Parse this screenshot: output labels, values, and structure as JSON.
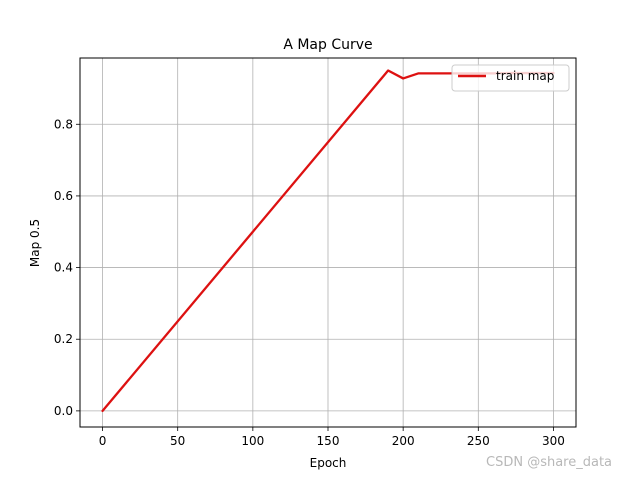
{
  "chart_data": {
    "type": "line",
    "title": "A Map Curve",
    "xlabel": "Epoch",
    "ylabel": "Map 0.5",
    "xlim": [
      -15,
      315
    ],
    "ylim": [
      -0.045,
      0.985
    ],
    "xticks": [
      0,
      50,
      100,
      150,
      200,
      250,
      300
    ],
    "yticks": [
      0.0,
      0.2,
      0.4,
      0.6,
      0.8
    ],
    "ytick_labels": [
      "0.0",
      "0.2",
      "0.4",
      "0.6",
      "0.8"
    ],
    "grid": true,
    "legend_position": "upper-right",
    "series": [
      {
        "name": "train map",
        "color": "#dd1111",
        "x": [
          0,
          190,
          200,
          210,
          220,
          230,
          240,
          250,
          260,
          270,
          280,
          290,
          300
        ],
        "y": [
          0.0,
          0.95,
          0.928,
          0.942,
          0.942,
          0.942,
          0.942,
          0.942,
          0.942,
          0.943,
          0.943,
          0.943,
          0.943
        ]
      }
    ]
  },
  "watermark": "CSDN @share_data"
}
